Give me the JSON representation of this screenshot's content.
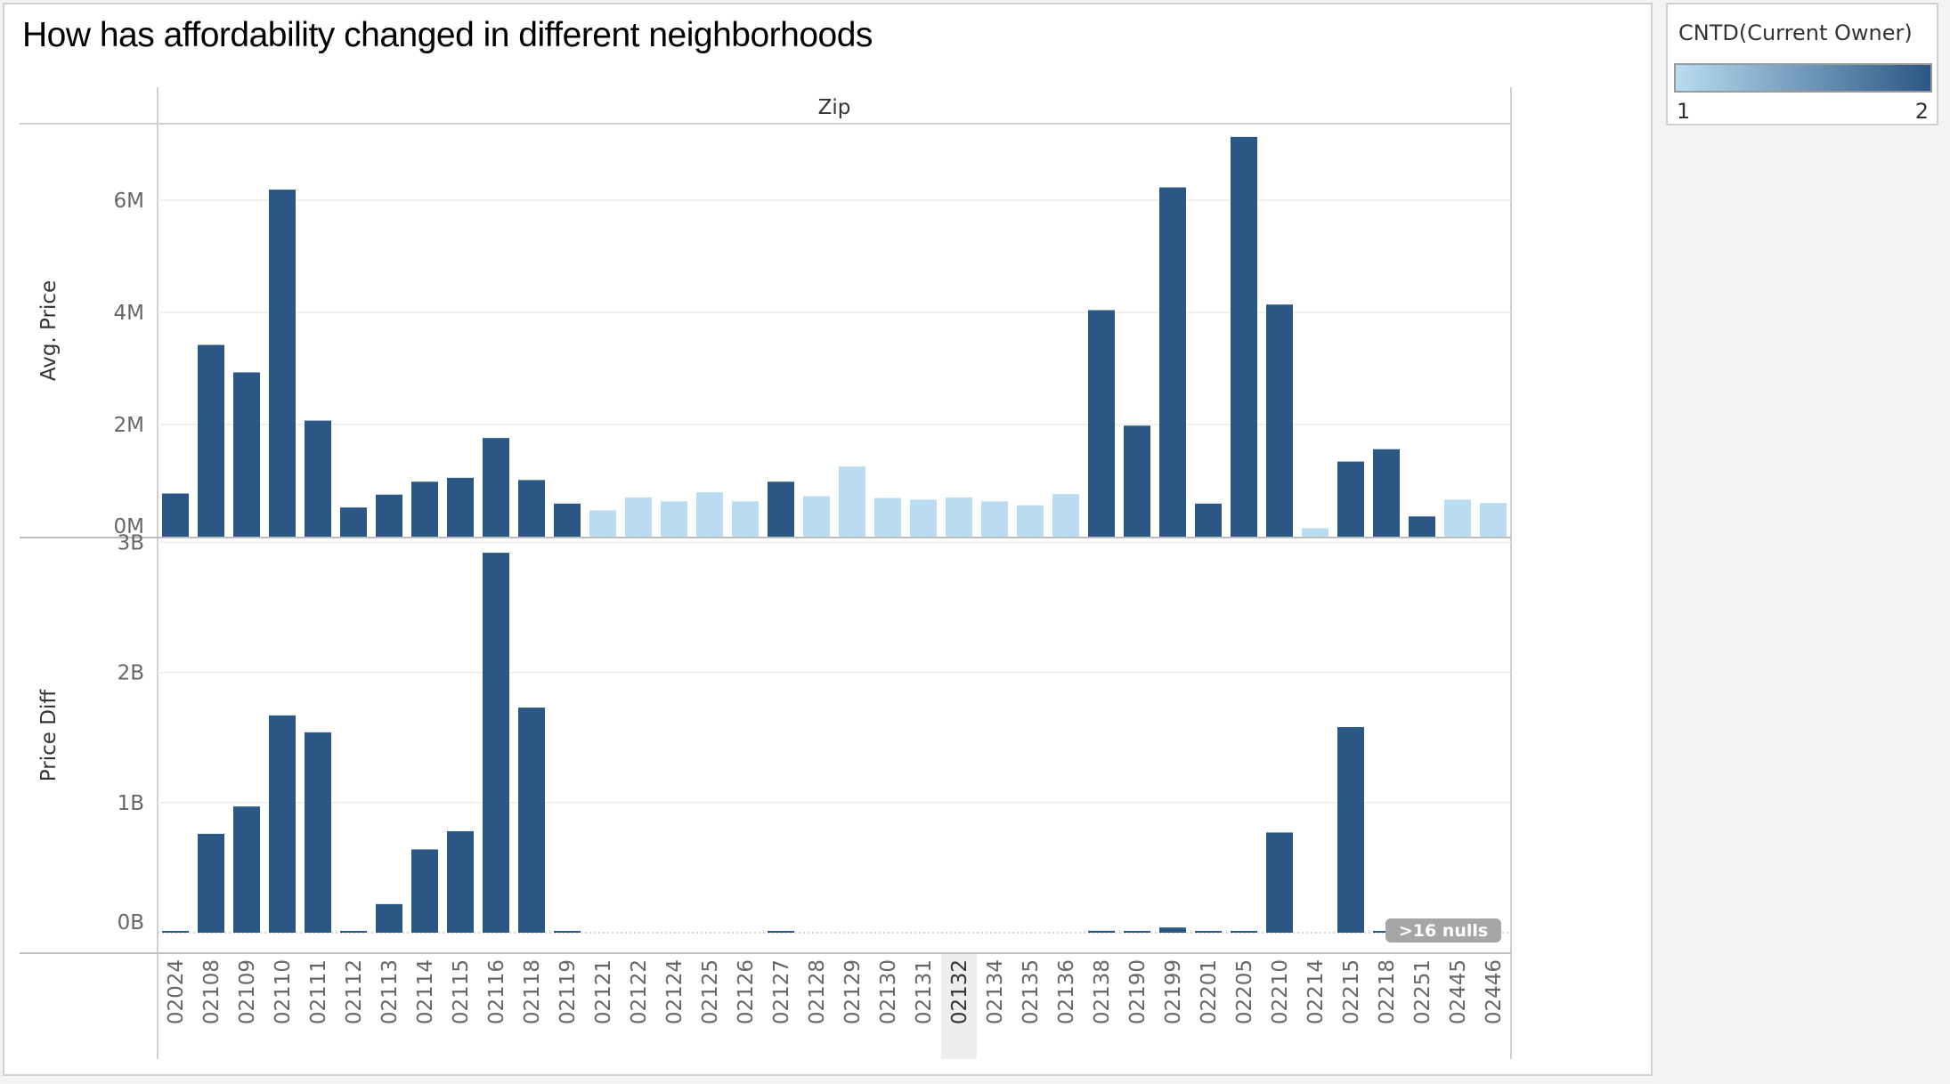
{
  "title": "How has affordability changed in different neighborhoods",
  "legend": {
    "title": "CNTD(Current Owner)",
    "min_label": "1",
    "max_label": "2",
    "color_low": "#b9dcf0",
    "color_high": "#2c5786"
  },
  "colors": {
    "dark": "#2b5784",
    "light": "#b9dcf0"
  },
  "chart_data": {
    "type": "bar",
    "column_header": "Zip",
    "categories": [
      "02024",
      "02108",
      "02109",
      "02110",
      "02111",
      "02112",
      "02113",
      "02114",
      "02115",
      "02116",
      "02118",
      "02119",
      "02121",
      "02122",
      "02124",
      "02125",
      "02126",
      "02127",
      "02128",
      "02129",
      "02130",
      "02131",
      "02132",
      "02134",
      "02135",
      "02136",
      "02138",
      "02190",
      "02199",
      "02201",
      "02205",
      "02210",
      "02214",
      "02215",
      "02218",
      "02251",
      "02445",
      "02446"
    ],
    "color_values": [
      2,
      2,
      2,
      2,
      2,
      2,
      2,
      2,
      2,
      2,
      2,
      2,
      1,
      1,
      1,
      1,
      1,
      2,
      1,
      1,
      1,
      1,
      1,
      1,
      1,
      1,
      2,
      2,
      2,
      2,
      2,
      2,
      1,
      2,
      2,
      2,
      1,
      1
    ],
    "panels": [
      {
        "ylabel": "Avg. Price",
        "ylim": [
          0,
          7350000
        ],
        "ticks": [
          0,
          2000000,
          4000000,
          6000000
        ],
        "tick_labels": [
          "0M",
          "2M",
          "4M",
          "6M"
        ],
        "values": [
          770000,
          3420000,
          2930000,
          6190000,
          2070000,
          520000,
          750000,
          980000,
          1050000,
          1760000,
          1010000,
          590000,
          470000,
          700000,
          630000,
          790000,
          630000,
          980000,
          720000,
          1250000,
          690000,
          660000,
          700000,
          630000,
          560000,
          760000,
          4040000,
          1980000,
          6230000,
          590000,
          7130000,
          4140000,
          150000,
          1340000,
          1560000,
          360000,
          660000,
          600000
        ]
      },
      {
        "ylabel": "Price Diff",
        "ylim": [
          0,
          3030000000
        ],
        "ticks": [
          0,
          1000000000,
          2000000000,
          3000000000
        ],
        "tick_labels": [
          "0B",
          "1B",
          "2B",
          "3B"
        ],
        "values": [
          10000000,
          760000000,
          970000000,
          1670000000,
          1540000000,
          3000000,
          220000000,
          640000000,
          780000000,
          2920000000,
          1730000000,
          5000000,
          null,
          null,
          null,
          null,
          null,
          5000000,
          null,
          null,
          null,
          null,
          null,
          null,
          null,
          null,
          15000000,
          5000000,
          40000000,
          5000000,
          5000000,
          770000000,
          null,
          1580000000,
          5000000,
          null,
          null,
          null
        ],
        "null_badge": ">16 nulls"
      }
    ],
    "highlighted_category": "02132",
    "grid": true
  }
}
